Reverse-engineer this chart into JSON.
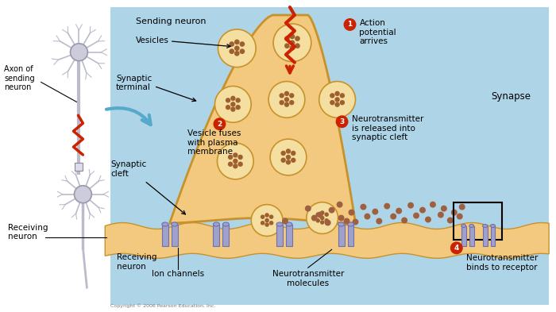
{
  "bg_color": "#ffffff",
  "light_blue_bg": "#aed4e8",
  "synapse_body_color": "#f2c97e",
  "synapse_outline": "#c8922a",
  "vesicle_outer_color": "#f5dfa0",
  "vesicle_dot_color": "#9e6030",
  "receiving_strip_color": "#f2c97e",
  "ion_channel_color": "#a0a0cc",
  "nt_dot_color": "#a06040",
  "receptor_box_color": "#a0a0cc",
  "red_color": "#cc2200",
  "blue_arrow_color": "#55aacc",
  "neuron_body_color": "#ccccdd",
  "neuron_outline_color": "#9999aa",
  "axon_color": "#bbbbcc",
  "labels": {
    "sending_neuron": "Sending neuron",
    "vesicles": "Vesicles",
    "synaptic_terminal": "Synaptic\nterminal",
    "axon": "Axon of\nsending\nneuron",
    "synapse": "Synapse",
    "synaptic_cleft": "Synaptic\ncleft",
    "receiving_neuron_left": "Receiving\nneuron",
    "receiving_neuron_bottom": "Receiving\nneuron",
    "ion_channels": "Ion channels",
    "nt_molecules": "Neurotransmitter\nmolecules",
    "step1": "Action\npotential\narrives",
    "step2": "Vesicle fuses\nwith plasma\nmembrane",
    "step3": "Neurotransmitter\nis released into\nsynaptic cleft",
    "step4": "Neurotransmitter\nbinds to receptor"
  },
  "copyright": "Copyright © 2006 Pearson Education, Inc."
}
